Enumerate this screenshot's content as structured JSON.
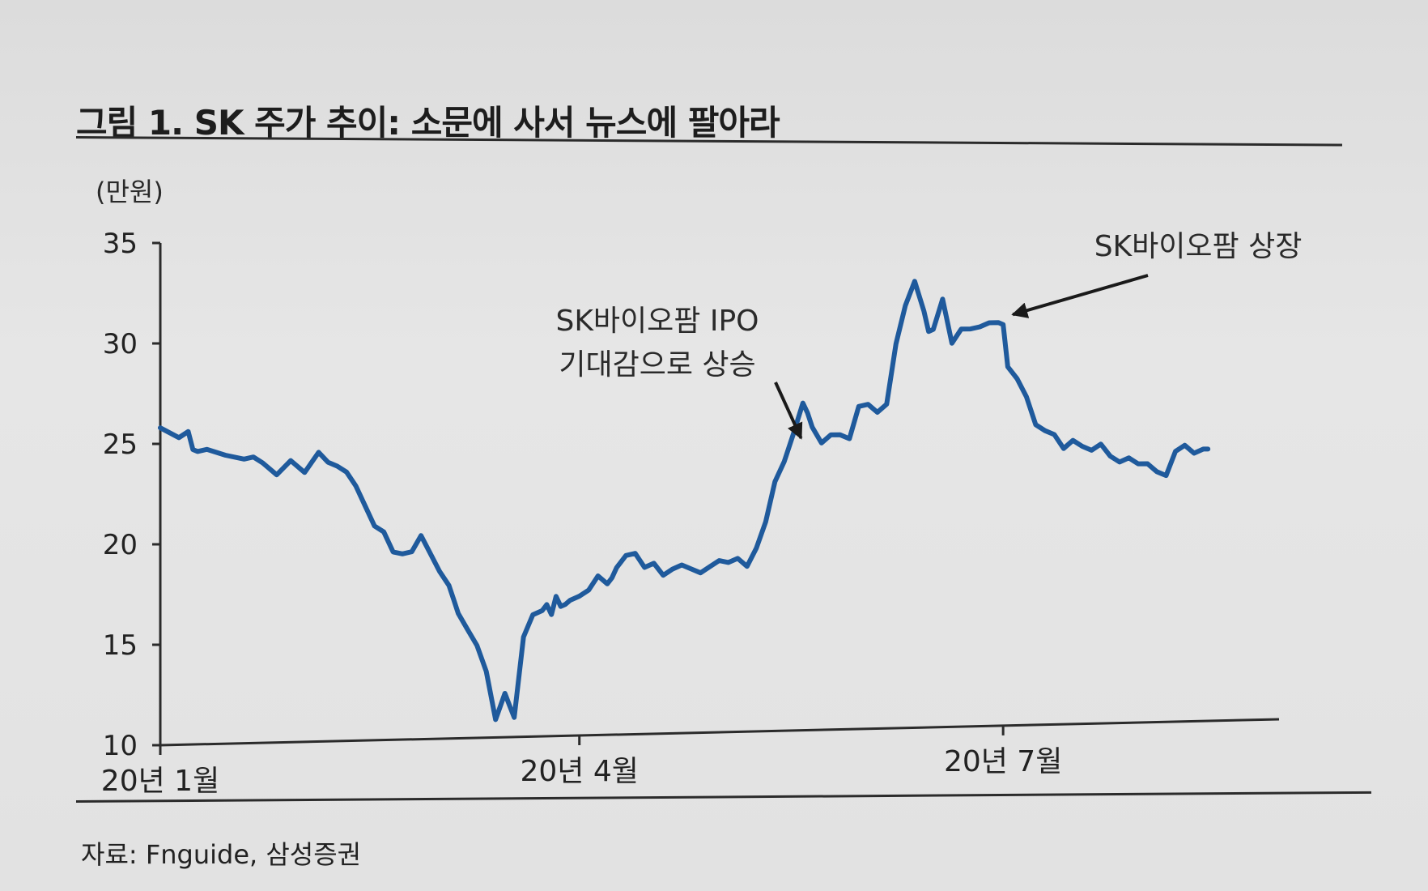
{
  "figure": {
    "title": "그림 1. SK 주가 추이: 소문에 사서 뉴스에 팔아라",
    "unit": "(만원)",
    "source": "자료: Fnguide, 삼성증권"
  },
  "chart_data": {
    "type": "line",
    "title": "그림 1. SK 주가 추이: 소문에 사서 뉴스에 팔아라",
    "ylabel": "(만원)",
    "xlabel": "",
    "ylim": [
      10,
      35
    ],
    "yticks": [
      10,
      15,
      20,
      25,
      30,
      35
    ],
    "xticks": [
      {
        "label": "20년 1월",
        "x": 0
      },
      {
        "label": "20년 4월",
        "x": 90
      },
      {
        "label": "20년 7월",
        "x": 181
      }
    ],
    "xlim": [
      0,
      226
    ],
    "grid": false,
    "legend": "none",
    "colors": {
      "line": "#1f5a9c",
      "axis": "#2b2b2b"
    },
    "series": [
      {
        "x": [
          0,
          4,
          6,
          7,
          8,
          10,
          14,
          18,
          20,
          22,
          25,
          28,
          31,
          34,
          36,
          38,
          40,
          42,
          44,
          46,
          48,
          50,
          52,
          54,
          56,
          58,
          60,
          62,
          63,
          64,
          66,
          68,
          70,
          72,
          74,
          75,
          76,
          78,
          80,
          82,
          83,
          84,
          85,
          86,
          87,
          88,
          90,
          92,
          94,
          96,
          97,
          98,
          100,
          102,
          104,
          106,
          108,
          110,
          112,
          114,
          116,
          118,
          120,
          122,
          124,
          126,
          128,
          130,
          132,
          134,
          136,
          138,
          139,
          140,
          142,
          144,
          146,
          148,
          150,
          152,
          154,
          156,
          158,
          160,
          162,
          164,
          165,
          166,
          168,
          170,
          172,
          174,
          176,
          178,
          180,
          181,
          182,
          184,
          186,
          188,
          190,
          192,
          194,
          196,
          198,
          200,
          202,
          204,
          206,
          208,
          210,
          212,
          214,
          216,
          218,
          220,
          222,
          224,
          225
        ],
        "values": [
          25.8,
          25.3,
          25.6,
          24.7,
          24.6,
          24.7,
          24.4,
          24.2,
          24.3,
          24.0,
          23.4,
          24.1,
          23.5,
          24.5,
          24.0,
          23.8,
          23.5,
          22.8,
          21.8,
          20.8,
          20.5,
          19.5,
          19.4,
          19.5,
          20.3,
          19.4,
          18.5,
          17.8,
          17.1,
          16.4,
          15.6,
          14.8,
          13.5,
          11.1,
          12.4,
          11.8,
          11.2,
          15.2,
          16.3,
          16.5,
          16.8,
          16.3,
          17.2,
          16.7,
          16.8,
          17.0,
          17.2,
          17.5,
          18.2,
          17.8,
          18.1,
          18.6,
          19.2,
          19.3,
          18.6,
          18.8,
          18.2,
          18.5,
          18.7,
          18.5,
          18.3,
          18.6,
          18.9,
          18.8,
          19.0,
          18.6,
          19.5,
          20.8,
          22.8,
          23.8,
          25.2,
          26.7,
          26.2,
          25.5,
          24.7,
          25.1,
          25.1,
          24.9,
          26.5,
          26.6,
          26.2,
          26.6,
          29.6,
          31.5,
          32.7,
          31.2,
          30.2,
          30.3,
          31.8,
          29.6,
          30.3,
          30.3,
          30.4,
          30.6,
          30.6,
          30.5,
          28.4,
          27.8,
          26.9,
          25.5,
          25.2,
          25.0,
          24.3,
          24.7,
          24.4,
          24.2,
          24.5,
          23.9,
          23.6,
          23.8,
          23.5,
          23.5,
          23.1,
          22.9,
          24.1,
          24.4,
          24.0,
          24.2,
          24.2
        ],
        "points_note": ""
      }
    ],
    "annotations": [
      {
        "lines": [
          "SK바이오팜 IPO",
          "기대감으로 상승"
        ],
        "target": {
          "x": 139,
          "y": 23.9
        }
      },
      {
        "lines": [
          "SK바이오팜 상장"
        ],
        "target": {
          "x": 181,
          "y": 30.6
        }
      }
    ]
  }
}
